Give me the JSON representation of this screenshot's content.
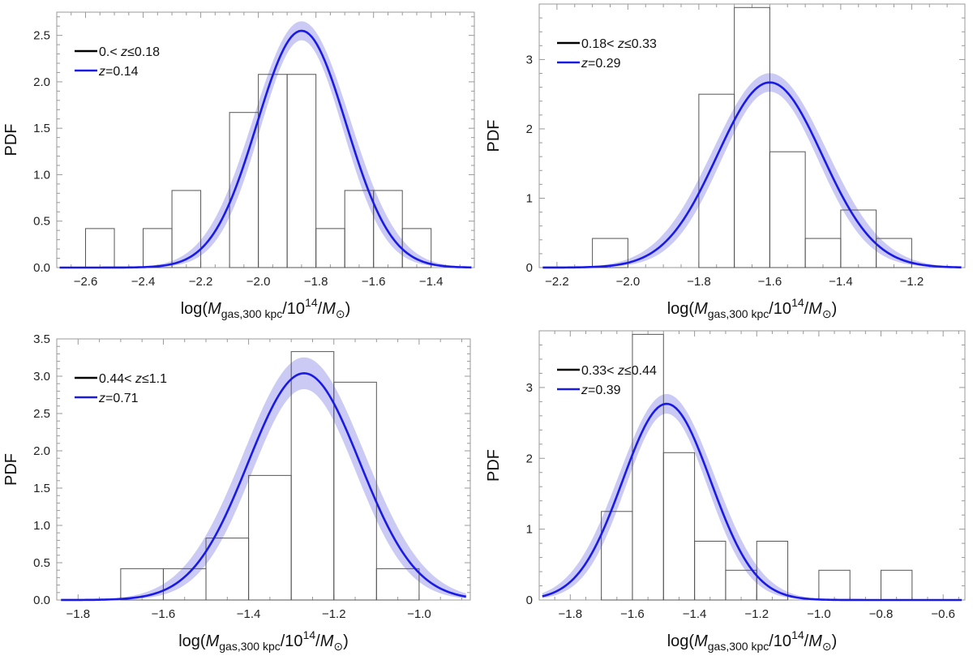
{
  "chart_data": [
    {
      "type": "bar",
      "panel": "top-left",
      "ylabel": "PDF",
      "xlabel_parts": {
        "prefix": "log(",
        "M": "M",
        "sub": "gas,300 kpc",
        "mid": "/10",
        "exp": "14",
        "slash": "/",
        "sun_sub": "⊙",
        "suffix": ")"
      },
      "xlim": [
        -2.7,
        -1.25
      ],
      "ylim": [
        0,
        2.75
      ],
      "xticks": [
        -2.6,
        -2.4,
        -2.2,
        -2.0,
        -1.8,
        -1.6,
        -1.4
      ],
      "xtick_labels": [
        "−2.6",
        "−2.4",
        "−2.2",
        "−2.0",
        "−1.8",
        "−1.6",
        "−1.4"
      ],
      "yticks": [
        0.0,
        0.5,
        1.0,
        1.5,
        2.0,
        2.5
      ],
      "ytick_labels": [
        "0.0",
        "0.5",
        "1.0",
        "1.5",
        "2.0",
        "2.5"
      ],
      "histogram": {
        "bin_width": 0.1,
        "bin_left_edges": [
          -2.6,
          -2.4,
          -2.3,
          -2.1,
          -2.0,
          -1.9,
          -1.8,
          -1.7,
          -1.6,
          -1.5
        ],
        "values": [
          0.42,
          0.42,
          0.83,
          1.67,
          2.08,
          2.08,
          0.42,
          0.83,
          0.83,
          0.42
        ]
      },
      "model": {
        "peak_x": -1.85,
        "peak_y": 2.55,
        "sigma": 0.155,
        "band_fraction": 0.04
      },
      "legend": [
        {
          "color": "#000000",
          "pre": "0.< ",
          "var": "z",
          "post": "≤0.18"
        },
        {
          "color": "#1a1ae6",
          "pre": "",
          "var": "z",
          "post": "=0.14"
        }
      ],
      "legend_position": "top-left"
    },
    {
      "type": "bar",
      "panel": "top-right",
      "ylabel": "PDF",
      "xlabel_parts": {
        "prefix": "log(",
        "M": "M",
        "sub": "gas,300 kpc",
        "mid": "/10",
        "exp": "14",
        "slash": "/",
        "sun_sub": "⊙",
        "suffix": ")"
      },
      "xlim": [
        -2.25,
        -1.05
      ],
      "ylim": [
        0,
        3.8
      ],
      "xticks": [
        -2.2,
        -2.0,
        -1.8,
        -1.6,
        -1.4,
        -1.2
      ],
      "xtick_labels": [
        "−2.2",
        "−2.0",
        "−1.8",
        "−1.6",
        "−1.4",
        "−1.2"
      ],
      "yticks": [
        0,
        1,
        2,
        3
      ],
      "ytick_labels": [
        "0",
        "1",
        "2",
        "3"
      ],
      "histogram": {
        "bin_width": 0.1,
        "bin_left_edges": [
          -2.1,
          -1.8,
          -1.7,
          -1.6,
          -1.5,
          -1.4,
          -1.3
        ],
        "values": [
          0.42,
          2.5,
          3.75,
          1.67,
          0.42,
          0.83,
          0.42
        ]
      },
      "model": {
        "peak_x": -1.6,
        "peak_y": 2.67,
        "sigma": 0.148,
        "band_fraction": 0.05
      },
      "legend": [
        {
          "color": "#000000",
          "pre": "0.18< ",
          "var": "z",
          "post": "≤0.33"
        },
        {
          "color": "#1a1ae6",
          "pre": "",
          "var": "z",
          "post": "=0.29"
        }
      ],
      "legend_position": "top-left"
    },
    {
      "type": "bar",
      "panel": "bottom-left",
      "ylabel": "PDF",
      "xlabel_parts": {
        "prefix": "log(",
        "M": "M",
        "sub": "gas,300 kpc",
        "mid": "/10",
        "exp": "14",
        "slash": "/",
        "sun_sub": "⊙",
        "suffix": ")"
      },
      "xlim": [
        -1.85,
        -0.88
      ],
      "ylim": [
        0,
        3.5
      ],
      "xticks": [
        -1.8,
        -1.6,
        -1.4,
        -1.2,
        -1.0
      ],
      "xtick_labels": [
        "−1.8",
        "−1.6",
        "−1.4",
        "−1.2",
        "−1.0"
      ],
      "yticks": [
        0.0,
        0.5,
        1.0,
        1.5,
        2.0,
        2.5,
        3.0,
        3.5
      ],
      "ytick_labels": [
        "0.0",
        "0.5",
        "1.0",
        "1.5",
        "2.0",
        "2.5",
        "3.0",
        "3.5"
      ],
      "histogram": {
        "bin_width": 0.1,
        "bin_left_edges": [
          -1.7,
          -1.6,
          -1.5,
          -1.4,
          -1.3,
          -1.2,
          -1.1
        ],
        "values": [
          0.42,
          0.42,
          0.83,
          1.67,
          3.33,
          2.92,
          0.42
        ]
      },
      "model": {
        "peak_x": -1.27,
        "peak_y": 3.04,
        "sigma": 0.131,
        "band_fraction": 0.07
      },
      "legend": [
        {
          "color": "#000000",
          "pre": "0.44< ",
          "var": "z",
          "post": "≤1.1"
        },
        {
          "color": "#1a1ae6",
          "pre": "",
          "var": "z",
          "post": "=0.71"
        }
      ],
      "legend_position": "top-left"
    },
    {
      "type": "bar",
      "panel": "bottom-right",
      "ylabel": "PDF",
      "xlabel_parts": {
        "prefix": "log(",
        "M": "M",
        "sub": "gas,300 kpc",
        "mid": "/10",
        "exp": "14",
        "slash": "/",
        "sun_sub": "⊙",
        "suffix": ")"
      },
      "xlim": [
        -1.9,
        -0.53
      ],
      "ylim": [
        0,
        3.8
      ],
      "xticks": [
        -1.8,
        -1.6,
        -1.4,
        -1.2,
        -1.0,
        -0.8,
        -0.6
      ],
      "xtick_labels": [
        "−1.8",
        "−1.6",
        "−1.4",
        "−1.2",
        "−1.0",
        "−0.8",
        "−0.6"
      ],
      "yticks": [
        0,
        1,
        2,
        3
      ],
      "ytick_labels": [
        "0",
        "1",
        "2",
        "3"
      ],
      "histogram": {
        "bin_width": 0.1,
        "bin_left_edges": [
          -1.7,
          -1.6,
          -1.5,
          -1.4,
          -1.3,
          -1.2,
          -1.0,
          -0.8
        ],
        "values": [
          1.25,
          3.75,
          2.08,
          0.83,
          0.42,
          0.83,
          0.42,
          0.42
        ]
      },
      "model": {
        "peak_x": -1.49,
        "peak_y": 2.77,
        "sigma": 0.142,
        "band_fraction": 0.05
      },
      "legend": [
        {
          "color": "#000000",
          "pre": "0.33< ",
          "var": "z",
          "post": "≤0.44"
        },
        {
          "color": "#1a1ae6",
          "pre": "",
          "var": "z",
          "post": "=0.39"
        }
      ],
      "legend_position": "top-left"
    }
  ],
  "colors": {
    "model_line": "#1a1ae6",
    "model_band": "#c4c4f3",
    "histogram_edge": "#555555",
    "frame": "#999999",
    "legend_hist": "#000000"
  }
}
